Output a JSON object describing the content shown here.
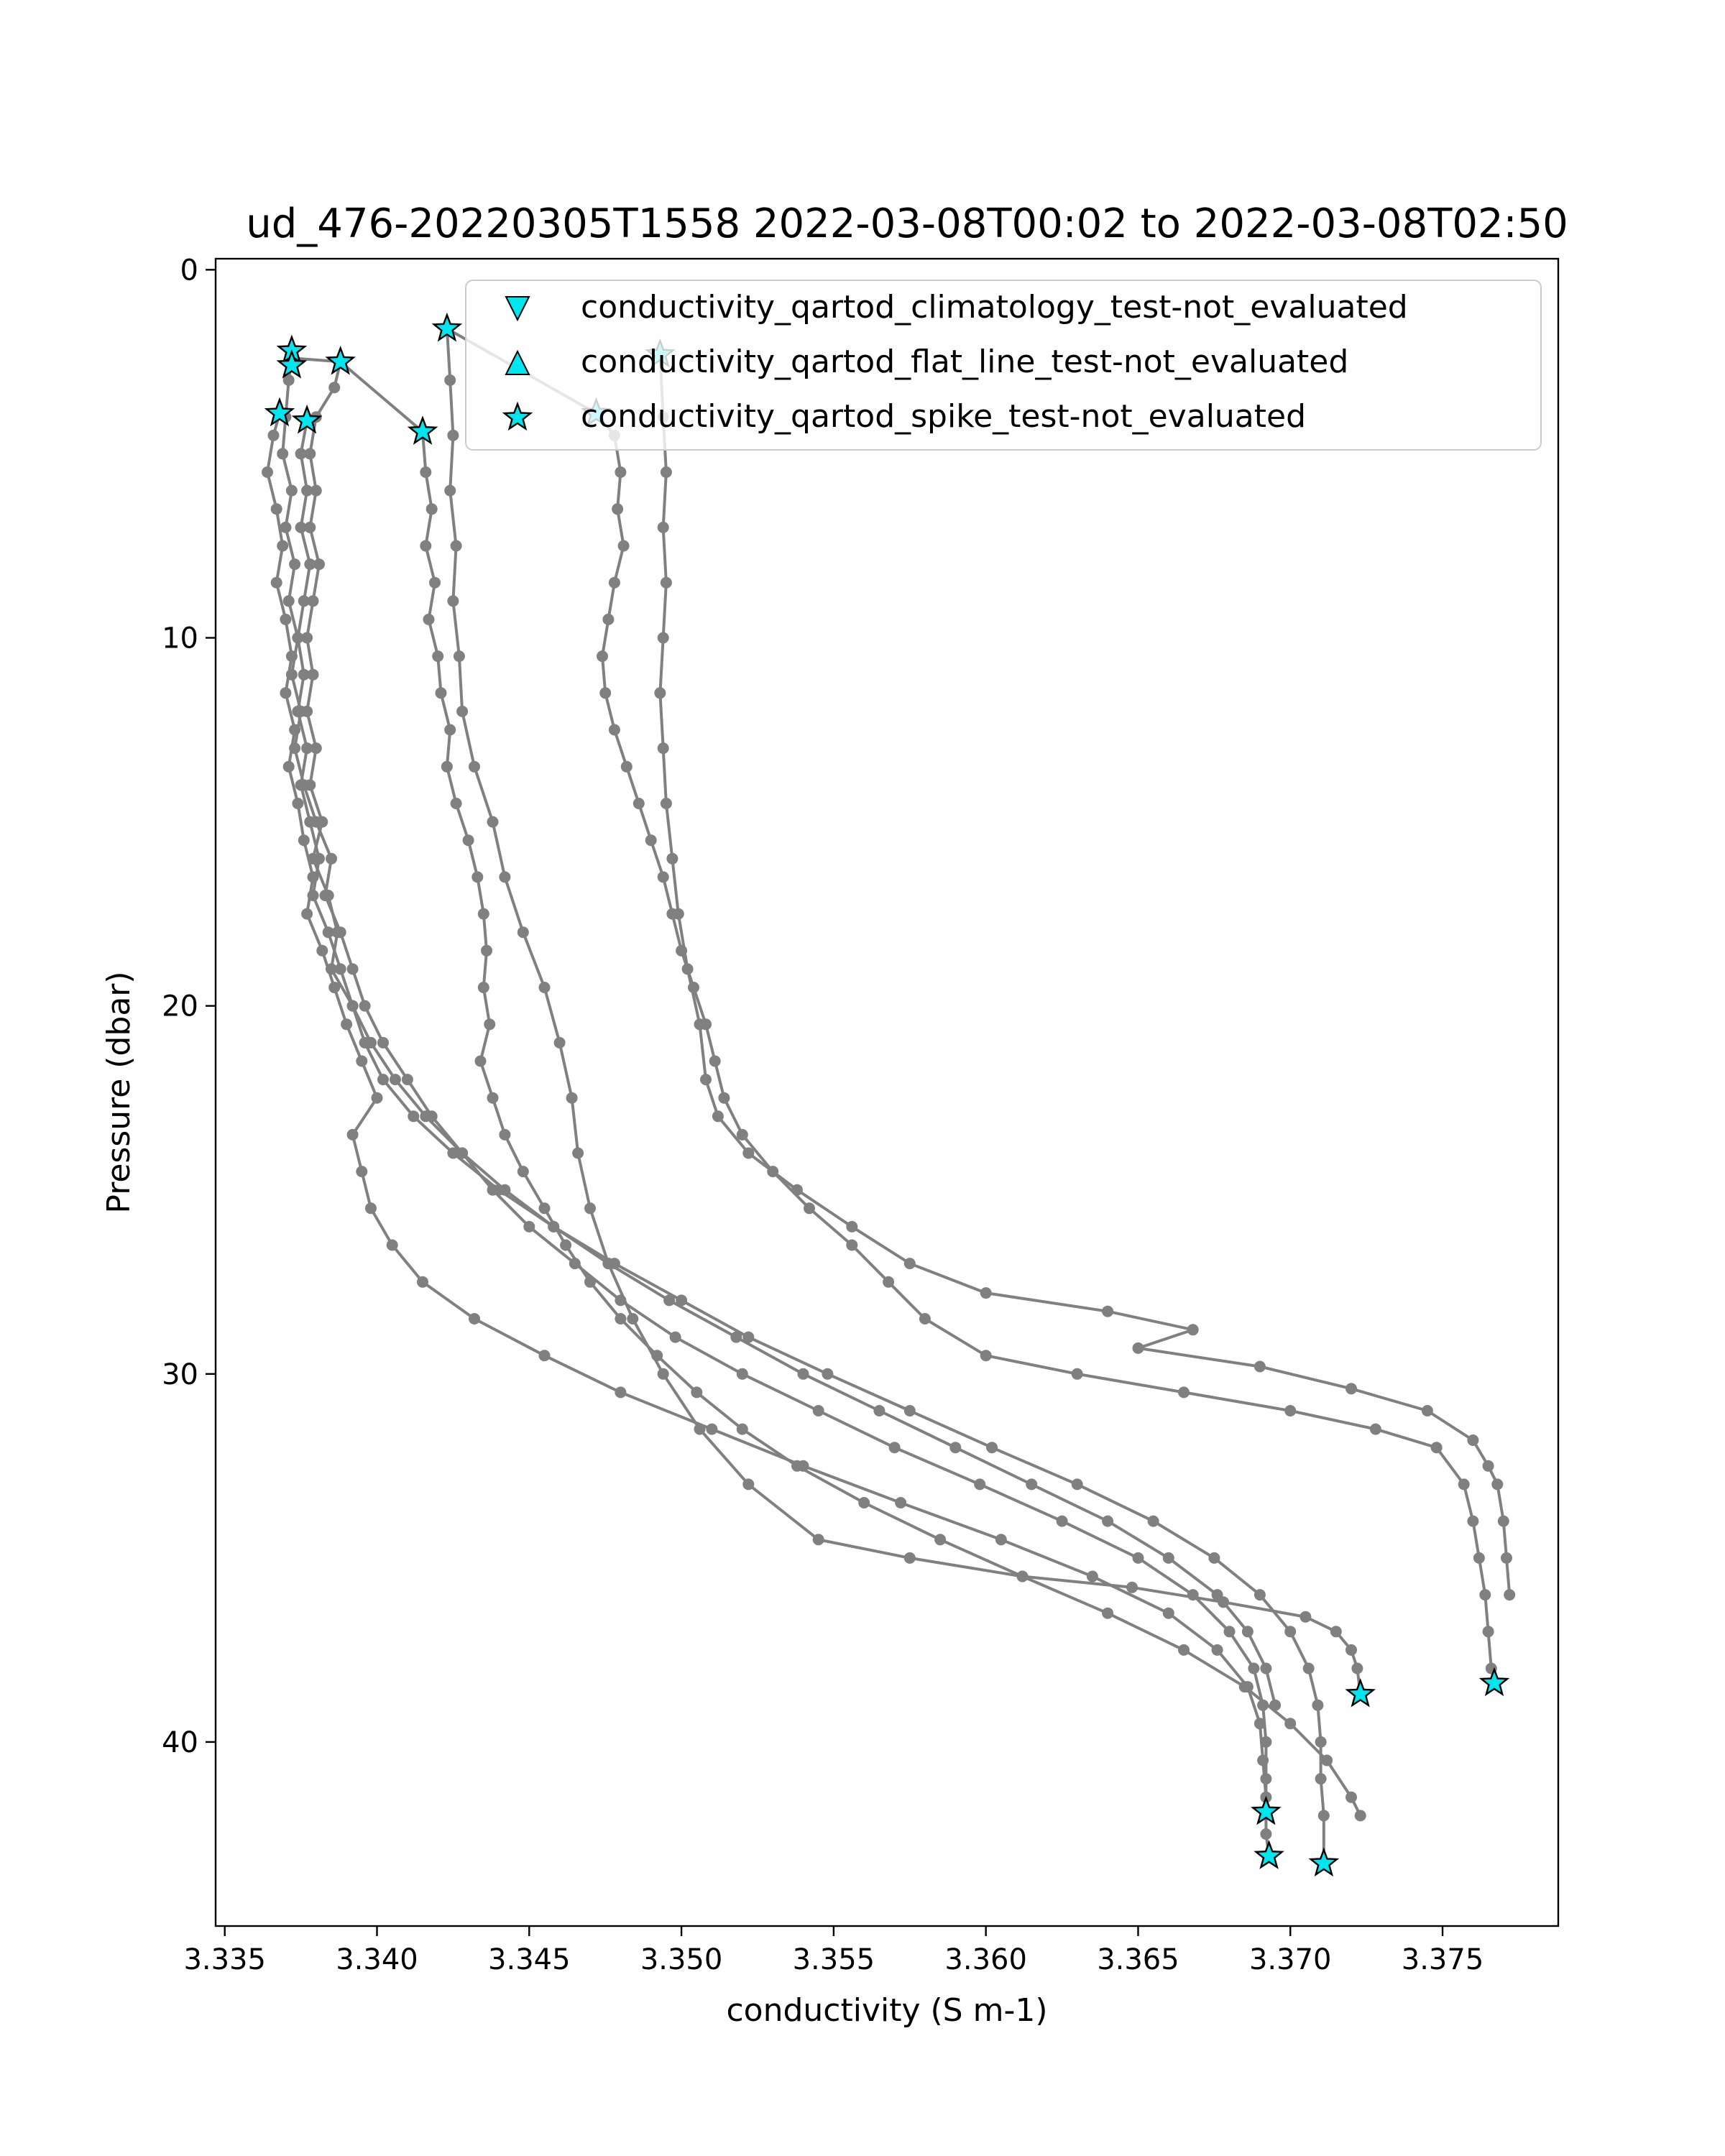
{
  "chart_data": {
    "type": "line",
    "title": "ud_476-20220305T1558 2022-03-08T00:02 to 2022-03-08T02:50",
    "xlabel": "conductivity (S m-1)",
    "ylabel": "Pressure (dbar)",
    "xlim": [
      3.3347,
      3.3788
    ],
    "ylim": [
      45.0,
      -0.3
    ],
    "y_inverted": true,
    "x_ticks": [
      {
        "value": 3.335,
        "label": "3.335"
      },
      {
        "value": 3.34,
        "label": "3.340"
      },
      {
        "value": 3.345,
        "label": "3.345"
      },
      {
        "value": 3.35,
        "label": "3.350"
      },
      {
        "value": 3.355,
        "label": "3.355"
      },
      {
        "value": 3.36,
        "label": "3.360"
      },
      {
        "value": 3.365,
        "label": "3.365"
      },
      {
        "value": 3.37,
        "label": "3.370"
      },
      {
        "value": 3.375,
        "label": "3.375"
      }
    ],
    "y_ticks": [
      {
        "value": 0,
        "label": "0"
      },
      {
        "value": 10,
        "label": "10"
      },
      {
        "value": 20,
        "label": "20"
      },
      {
        "value": 30,
        "label": "30"
      },
      {
        "value": 40,
        "label": "40"
      }
    ],
    "grid": false,
    "line_color": "#808080",
    "marker_color": "#00e5ee",
    "legend": {
      "placement": "top-right",
      "entries": [
        {
          "label": "conductivity_qartod_climatology_test-not_evaluated",
          "marker": "triangle-down"
        },
        {
          "label": "conductivity_qartod_flat_line_test-not_evaluated",
          "marker": "triangle-up"
        },
        {
          "label": "conductivity_qartod_spike_test-not_evaluated",
          "marker": "star"
        }
      ]
    },
    "profiles": [
      [
        [
          3.3372,
          2.4
        ],
        [
          3.3371,
          3.0
        ],
        [
          3.337,
          4.0
        ],
        [
          3.3369,
          5.0
        ],
        [
          3.3372,
          6.0
        ],
        [
          3.337,
          7.0
        ],
        [
          3.3373,
          8.0
        ],
        [
          3.3371,
          9.0
        ],
        [
          3.3374,
          10.0
        ],
        [
          3.3372,
          11.0
        ],
        [
          3.3375,
          12.0
        ],
        [
          3.3373,
          13.0
        ],
        [
          3.3376,
          14.0
        ],
        [
          3.338,
          15.0
        ],
        [
          3.3385,
          16.0
        ],
        [
          3.3383,
          17.0
        ],
        [
          3.3388,
          18.0
        ],
        [
          3.3392,
          19.0
        ],
        [
          3.3396,
          20.0
        ],
        [
          3.3402,
          21.0
        ],
        [
          3.341,
          22.0
        ],
        [
          3.3418,
          23.0
        ],
        [
          3.3428,
          24.0
        ],
        [
          3.3438,
          25.0
        ],
        [
          3.345,
          26.0
        ],
        [
          3.3465,
          27.0
        ],
        [
          3.348,
          28.0
        ],
        [
          3.3498,
          29.0
        ],
        [
          3.352,
          30.0
        ],
        [
          3.3545,
          31.0
        ],
        [
          3.357,
          32.0
        ],
        [
          3.3598,
          33.0
        ],
        [
          3.3625,
          34.0
        ],
        [
          3.365,
          35.0
        ],
        [
          3.3668,
          36.0
        ],
        [
          3.368,
          37.0
        ],
        [
          3.3688,
          38.0
        ],
        [
          3.3691,
          39.0
        ],
        [
          3.3692,
          40.0
        ],
        [
          3.3692,
          41.0
        ],
        [
          3.3692,
          41.9
        ]
      ],
      [
        [
          3.3388,
          2.5
        ],
        [
          3.3386,
          3.2
        ],
        [
          3.338,
          4.0
        ],
        [
          3.3378,
          5.0
        ],
        [
          3.338,
          6.0
        ],
        [
          3.3378,
          7.0
        ],
        [
          3.3381,
          8.0
        ],
        [
          3.3379,
          9.0
        ],
        [
          3.3377,
          10.0
        ],
        [
          3.3379,
          11.0
        ],
        [
          3.3377,
          12.0
        ],
        [
          3.338,
          13.0
        ],
        [
          3.3378,
          14.0
        ],
        [
          3.3382,
          15.0
        ],
        [
          3.3379,
          16.0
        ],
        [
          3.3384,
          17.0
        ],
        [
          3.3387,
          18.0
        ],
        [
          3.3385,
          19.0
        ],
        [
          3.3392,
          20.0
        ],
        [
          3.3396,
          21.0
        ],
        [
          3.3402,
          22.0
        ],
        [
          3.3412,
          23.0
        ],
        [
          3.3425,
          24.0
        ],
        [
          3.344,
          25.0
        ],
        [
          3.3458,
          26.0
        ],
        [
          3.3478,
          27.0
        ],
        [
          3.35,
          28.0
        ],
        [
          3.3522,
          29.0
        ],
        [
          3.3548,
          30.0
        ],
        [
          3.3575,
          31.0
        ],
        [
          3.3602,
          32.0
        ],
        [
          3.363,
          33.0
        ],
        [
          3.3655,
          34.0
        ],
        [
          3.3675,
          35.0
        ],
        [
          3.369,
          36.0
        ],
        [
          3.37,
          37.0
        ],
        [
          3.3706,
          38.0
        ],
        [
          3.3709,
          39.0
        ],
        [
          3.371,
          40.0
        ],
        [
          3.371,
          41.0
        ],
        [
          3.3711,
          42.0
        ],
        [
          3.3711,
          43.3
        ]
      ],
      [
        [
          3.3368,
          3.9
        ],
        [
          3.3366,
          4.5
        ],
        [
          3.3364,
          5.5
        ],
        [
          3.3367,
          6.5
        ],
        [
          3.3369,
          7.5
        ],
        [
          3.3367,
          8.5
        ],
        [
          3.337,
          9.5
        ],
        [
          3.3372,
          10.5
        ],
        [
          3.337,
          11.5
        ],
        [
          3.3373,
          12.5
        ],
        [
          3.3371,
          13.5
        ],
        [
          3.3374,
          14.5
        ],
        [
          3.3376,
          15.5
        ],
        [
          3.3379,
          16.5
        ],
        [
          3.3377,
          17.5
        ],
        [
          3.3382,
          18.5
        ],
        [
          3.3386,
          19.5
        ],
        [
          3.339,
          20.5
        ],
        [
          3.3395,
          21.5
        ],
        [
          3.34,
          22.5
        ],
        [
          3.3392,
          23.5
        ],
        [
          3.3395,
          24.5
        ],
        [
          3.3398,
          25.5
        ],
        [
          3.3405,
          26.5
        ],
        [
          3.3415,
          27.5
        ],
        [
          3.3432,
          28.5
        ],
        [
          3.3455,
          29.5
        ],
        [
          3.348,
          30.5
        ],
        [
          3.351,
          31.5
        ],
        [
          3.354,
          32.5
        ],
        [
          3.3572,
          33.5
        ],
        [
          3.3605,
          34.5
        ],
        [
          3.3635,
          35.5
        ],
        [
          3.366,
          36.5
        ],
        [
          3.3676,
          37.5
        ],
        [
          3.3686,
          38.5
        ],
        [
          3.369,
          39.5
        ],
        [
          3.3691,
          40.5
        ],
        [
          3.3692,
          41.5
        ],
        [
          3.3692,
          42.5
        ],
        [
          3.3693,
          43.1
        ]
      ],
      [
        [
          3.3377,
          4.1
        ],
        [
          3.3375,
          5.0
        ],
        [
          3.3377,
          6.0
        ],
        [
          3.3375,
          7.0
        ],
        [
          3.3378,
          8.0
        ],
        [
          3.3376,
          9.0
        ],
        [
          3.3374,
          10.0
        ],
        [
          3.3376,
          11.0
        ],
        [
          3.3374,
          12.0
        ],
        [
          3.3377,
          13.0
        ],
        [
          3.3375,
          14.0
        ],
        [
          3.3378,
          15.0
        ],
        [
          3.3381,
          16.0
        ],
        [
          3.3379,
          17.0
        ],
        [
          3.3384,
          18.0
        ],
        [
          3.3388,
          19.0
        ],
        [
          3.3392,
          20.0
        ],
        [
          3.3398,
          21.0
        ],
        [
          3.3406,
          22.0
        ],
        [
          3.3416,
          23.0
        ],
        [
          3.3428,
          24.0
        ],
        [
          3.3442,
          25.0
        ],
        [
          3.3458,
          26.0
        ],
        [
          3.3476,
          27.0
        ],
        [
          3.3496,
          28.0
        ],
        [
          3.3518,
          29.0
        ],
        [
          3.354,
          30.0
        ],
        [
          3.3565,
          31.0
        ],
        [
          3.359,
          32.0
        ],
        [
          3.3615,
          33.0
        ],
        [
          3.364,
          34.0
        ],
        [
          3.366,
          35.0
        ],
        [
          3.3676,
          36.0
        ],
        [
          3.3686,
          37.0
        ],
        [
          3.3692,
          38.0
        ],
        [
          3.3695,
          39.0
        ]
      ],
      [
        [
          3.3415,
          4.4
        ],
        [
          3.3416,
          5.5
        ],
        [
          3.3418,
          6.5
        ],
        [
          3.3416,
          7.5
        ],
        [
          3.3419,
          8.5
        ],
        [
          3.3417,
          9.5
        ],
        [
          3.342,
          10.5
        ],
        [
          3.3421,
          11.5
        ],
        [
          3.3424,
          12.5
        ],
        [
          3.3423,
          13.5
        ],
        [
          3.3426,
          14.5
        ],
        [
          3.343,
          15.5
        ],
        [
          3.3433,
          16.5
        ],
        [
          3.3435,
          17.5
        ],
        [
          3.3436,
          18.5
        ],
        [
          3.3435,
          19.5
        ],
        [
          3.3437,
          20.5
        ],
        [
          3.3434,
          21.5
        ],
        [
          3.3438,
          22.5
        ],
        [
          3.3442,
          23.5
        ],
        [
          3.3448,
          24.5
        ],
        [
          3.3455,
          25.5
        ],
        [
          3.3462,
          26.5
        ],
        [
          3.347,
          27.5
        ],
        [
          3.348,
          28.5
        ],
        [
          3.3492,
          29.5
        ],
        [
          3.3505,
          30.5
        ],
        [
          3.352,
          31.5
        ],
        [
          3.3538,
          32.5
        ],
        [
          3.356,
          33.5
        ],
        [
          3.3585,
          34.5
        ],
        [
          3.3612,
          35.5
        ],
        [
          3.364,
          36.5
        ],
        [
          3.3665,
          37.5
        ],
        [
          3.3685,
          38.5
        ],
        [
          3.37,
          39.5
        ],
        [
          3.3712,
          40.5
        ],
        [
          3.372,
          41.5
        ],
        [
          3.3723,
          42.0
        ]
      ],
      [
        [
          3.3423,
          1.6
        ],
        [
          3.3424,
          3.0
        ],
        [
          3.3425,
          4.5
        ],
        [
          3.3424,
          6.0
        ],
        [
          3.3426,
          7.5
        ],
        [
          3.3425,
          9.0
        ],
        [
          3.3427,
          10.5
        ],
        [
          3.3428,
          12.0
        ],
        [
          3.3432,
          13.5
        ],
        [
          3.3438,
          15.0
        ],
        [
          3.3442,
          16.5
        ],
        [
          3.3448,
          18.0
        ],
        [
          3.3455,
          19.5
        ],
        [
          3.346,
          21.0
        ],
        [
          3.3464,
          22.5
        ],
        [
          3.3466,
          24.0
        ],
        [
          3.347,
          25.5
        ],
        [
          3.3476,
          27.0
        ],
        [
          3.3484,
          28.5
        ],
        [
          3.3494,
          30.0
        ],
        [
          3.3506,
          31.5
        ],
        [
          3.3522,
          33.0
        ],
        [
          3.3545,
          34.5
        ],
        [
          3.3575,
          35.0
        ],
        [
          3.3612,
          35.5
        ],
        [
          3.3648,
          35.8
        ],
        [
          3.3678,
          36.2
        ],
        [
          3.3705,
          36.6
        ],
        [
          3.3715,
          37.0
        ],
        [
          3.372,
          37.5
        ],
        [
          3.3722,
          38.0
        ],
        [
          3.3723,
          38.7
        ]
      ],
      [
        [
          3.3472,
          3.9
        ],
        [
          3.3478,
          4.5
        ],
        [
          3.348,
          5.5
        ],
        [
          3.3479,
          6.5
        ],
        [
          3.3481,
          7.5
        ],
        [
          3.3478,
          8.5
        ],
        [
          3.3476,
          9.5
        ],
        [
          3.3474,
          10.5
        ],
        [
          3.3475,
          11.5
        ],
        [
          3.3478,
          12.5
        ],
        [
          3.3482,
          13.5
        ],
        [
          3.3486,
          14.5
        ],
        [
          3.349,
          15.5
        ],
        [
          3.3494,
          16.5
        ],
        [
          3.3497,
          17.5
        ],
        [
          3.35,
          18.5
        ],
        [
          3.3504,
          19.5
        ],
        [
          3.3508,
          20.5
        ],
        [
          3.3511,
          21.5
        ],
        [
          3.3514,
          22.5
        ],
        [
          3.352,
          23.5
        ],
        [
          3.353,
          24.5
        ],
        [
          3.3542,
          25.5
        ],
        [
          3.3556,
          26.5
        ],
        [
          3.3568,
          27.5
        ],
        [
          3.358,
          28.5
        ],
        [
          3.36,
          29.5
        ],
        [
          3.363,
          30.0
        ],
        [
          3.3665,
          30.5
        ],
        [
          3.37,
          31.0
        ],
        [
          3.3728,
          31.5
        ],
        [
          3.3748,
          32.0
        ],
        [
          3.3757,
          33.0
        ],
        [
          3.376,
          34.0
        ],
        [
          3.3762,
          35.0
        ],
        [
          3.3764,
          36.0
        ],
        [
          3.3765,
          37.0
        ],
        [
          3.3766,
          38.0
        ],
        [
          3.3767,
          38.4
        ]
      ],
      [
        [
          3.3493,
          2.3
        ],
        [
          3.3494,
          4.0
        ],
        [
          3.3495,
          5.5
        ],
        [
          3.3494,
          7.0
        ],
        [
          3.3495,
          8.5
        ],
        [
          3.3494,
          10.0
        ],
        [
          3.3493,
          11.5
        ],
        [
          3.3494,
          13.0
        ],
        [
          3.3495,
          14.5
        ],
        [
          3.3497,
          16.0
        ],
        [
          3.3499,
          17.5
        ],
        [
          3.3502,
          19.0
        ],
        [
          3.3506,
          20.5
        ],
        [
          3.3508,
          22.0
        ],
        [
          3.3512,
          23.0
        ],
        [
          3.3522,
          24.0
        ],
        [
          3.3538,
          25.0
        ],
        [
          3.3556,
          26.0
        ],
        [
          3.3575,
          27.0
        ],
        [
          3.36,
          27.8
        ],
        [
          3.364,
          28.3
        ],
        [
          3.3668,
          28.8
        ],
        [
          3.365,
          29.3
        ],
        [
          3.369,
          29.8
        ],
        [
          3.372,
          30.4
        ],
        [
          3.3745,
          31.0
        ],
        [
          3.376,
          31.8
        ],
        [
          3.3765,
          32.5
        ],
        [
          3.3768,
          33.0
        ],
        [
          3.377,
          34.0
        ],
        [
          3.3771,
          35.0
        ],
        [
          3.3772,
          36.0
        ]
      ]
    ],
    "transit_segments": [
      [
        [
          3.3372,
          2.4
        ],
        [
          3.3388,
          2.5
        ]
      ],
      [
        [
          3.3388,
          2.5
        ],
        [
          3.3415,
          4.4
        ]
      ],
      [
        [
          3.3423,
          1.6
        ],
        [
          3.3472,
          3.9
        ]
      ]
    ],
    "flagged_points": [
      [
        3.3372,
        2.2
      ],
      [
        3.3372,
        2.6
      ],
      [
        3.3388,
        2.5
      ],
      [
        3.3368,
        3.9
      ],
      [
        3.3377,
        4.1
      ],
      [
        3.3415,
        4.4
      ],
      [
        3.3423,
        1.6
      ],
      [
        3.3472,
        3.9
      ],
      [
        3.3493,
        2.3
      ],
      [
        3.3692,
        41.9
      ],
      [
        3.3693,
        43.1
      ],
      [
        3.3711,
        43.3
      ],
      [
        3.3723,
        38.7
      ],
      [
        3.3767,
        38.4
      ]
    ]
  }
}
